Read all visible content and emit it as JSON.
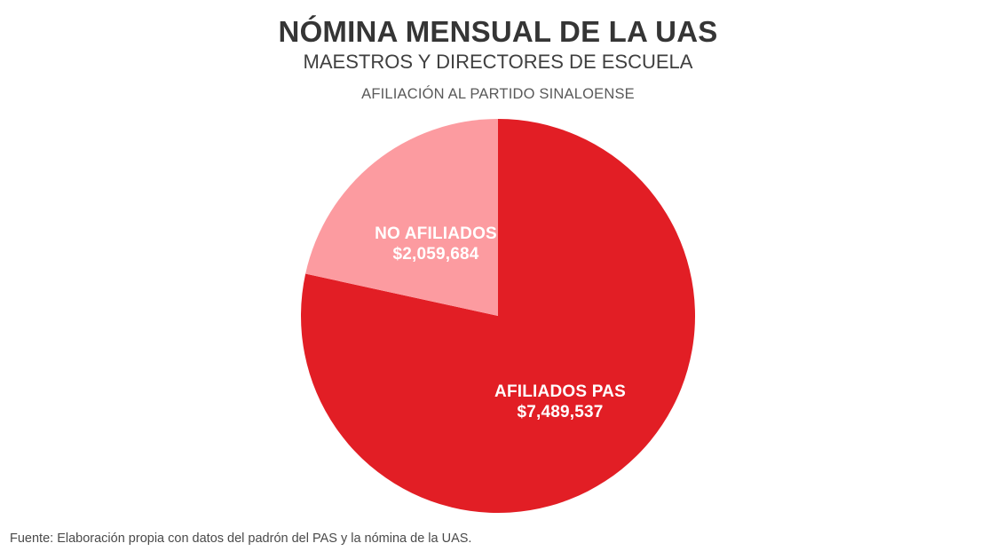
{
  "header": {
    "title": "NÓMINA MENSUAL DE LA UAS",
    "subtitle": "MAESTROS Y DIRECTORES DE ESCUELA",
    "kicker": "AFILIACIÓN AL PARTIDO SINALOENSE"
  },
  "footer": {
    "source": "Fuente: Elaboración propia con datos del padrón del PAS y la nómina de la UAS."
  },
  "chart_data": {
    "type": "pie",
    "title": "NÓMINA MENSUAL DE LA UAS",
    "subtitle": "MAESTROS Y DIRECTORES DE ESCUELA",
    "annotation": "AFILIACIÓN AL PARTIDO SINALOENSE",
    "legend": "none",
    "start_angle_deg": 0,
    "direction": "clockwise",
    "slices": [
      {
        "label": "AFILIADOS PAS",
        "value": 7489537,
        "display_value": "$7,489,537",
        "color": "#E21E25",
        "label_color": "#FFFFFF"
      },
      {
        "label": "NO AFILIADOS",
        "value": 2059684,
        "display_value": "$2,059,684",
        "color": "#FC9BA0",
        "label_color": "#FFFFFF"
      }
    ],
    "source": "Fuente: Elaboración propia con datos del padrón del PAS y la nómina de la UAS."
  }
}
